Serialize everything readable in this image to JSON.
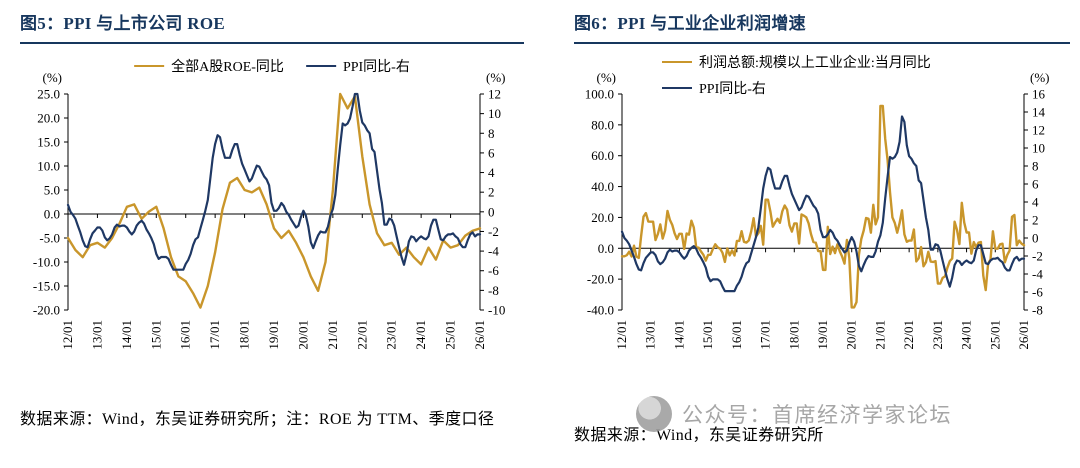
{
  "page": {
    "background": "#ffffff"
  },
  "colors": {
    "title_navy": "#17375E",
    "line_gold": "#C9962B",
    "line_navy": "#1F3864",
    "watermark_gray": "#A6A6A6"
  },
  "panels": [
    {
      "title": "图5：PPI 与上市公司 ROE",
      "source_note": "数据来源：Wind，东吴证券研究所；注：ROE 为 TTM、季度口径"
    },
    {
      "title": "图6：PPI 与工业企业利润增速",
      "source_note": "数据来源：Wind，东吴证券研究所",
      "watermark_text": "公众号：首席经济学家论坛"
    }
  ],
  "chart_data": [
    {
      "type": "line",
      "title": "图5：PPI 与上市公司 ROE",
      "legend_position": "top-center",
      "grid": false,
      "x_tick_labels": [
        "12/01",
        "13/01",
        "14/01",
        "15/01",
        "16/01",
        "17/01",
        "18/01",
        "19/01",
        "20/01",
        "21/01",
        "22/01",
        "23/01",
        "24/01",
        "25/01",
        "26/01"
      ],
      "left_axis": {
        "label": "(%)",
        "min": -20,
        "max": 25,
        "decimals": 1,
        "ticks": [
          25,
          20,
          15,
          10,
          5,
          0,
          -5,
          -10,
          -15,
          -20
        ]
      },
      "right_axis": {
        "label": "(%)",
        "min": -10,
        "max": 12,
        "decimals": 0,
        "ticks": [
          12,
          10,
          8,
          6,
          4,
          2,
          0,
          -2,
          -4,
          -6,
          -8,
          -10
        ]
      },
      "series": [
        {
          "name": "全部A股ROE-同比",
          "color": "#C9962B",
          "axis": "left",
          "frequency": "quarterly",
          "values": [
            -5,
            -7.5,
            -9,
            -6.5,
            -6,
            -7,
            -5,
            -2,
            1.5,
            2,
            -1,
            0.5,
            1.5,
            -3,
            -9,
            -13,
            -14,
            -16.5,
            -19.5,
            -15,
            -8,
            1,
            6.5,
            7.5,
            5,
            4.5,
            5.5,
            2,
            -3,
            -5,
            -3.5,
            -6,
            -9,
            -13,
            -16,
            -10,
            5,
            25,
            22,
            24.5,
            12,
            2,
            -4,
            -6.5,
            -6,
            -8.5,
            -7,
            -9,
            -10.5,
            -7,
            -9.5,
            -5.5,
            -7,
            -6.5,
            -4.5,
            -3.5,
            -3
          ]
        },
        {
          "name": "PPI同比-右",
          "color": "#1F3864",
          "axis": "right",
          "frequency": "monthly",
          "values": [
            0.7,
            0.0,
            -0.3,
            -0.7,
            -1.4,
            -2.1,
            -2.9,
            -3.5,
            -3.6,
            -2.8,
            -2.2,
            -1.9,
            -1.6,
            -1.6,
            -1.9,
            -2.6,
            -2.9,
            -2.7,
            -2.3,
            -1.6,
            -1.3,
            -1.5,
            -1.4,
            -1.4,
            -1.6,
            -2.0,
            -2.3,
            -2.0,
            -1.4,
            -1.1,
            -0.9,
            -1.2,
            -1.8,
            -2.2,
            -2.7,
            -3.3,
            -4.3,
            -4.8,
            -4.6,
            -4.6,
            -4.6,
            -4.8,
            -5.4,
            -5.9,
            -5.9,
            -5.9,
            -5.9,
            -5.9,
            -5.3,
            -4.9,
            -4.3,
            -3.4,
            -2.8,
            -2.6,
            -1.7,
            -0.8,
            0.1,
            1.2,
            3.3,
            5.5,
            6.9,
            7.8,
            7.6,
            6.4,
            5.5,
            5.5,
            5.5,
            6.3,
            6.9,
            6.9,
            5.8,
            4.9,
            4.3,
            3.7,
            3.1,
            3.4,
            4.1,
            4.7,
            4.6,
            4.1,
            3.6,
            3.3,
            2.7,
            0.9,
            0.1,
            0.1,
            0.4,
            0.9,
            0.6,
            0.0,
            -0.3,
            -0.8,
            -1.2,
            -1.6,
            -1.4,
            -0.5,
            0.1,
            -0.4,
            -1.5,
            -3.1,
            -3.7,
            -3.0,
            -2.4,
            -2.0,
            -2.1,
            -2.1,
            -1.5,
            -0.4,
            0.3,
            1.7,
            4.4,
            6.8,
            9.0,
            8.8,
            9.0,
            9.5,
            10.7,
            13.5,
            12.9,
            10.3,
            9.1,
            8.8,
            8.3,
            8.0,
            6.4,
            6.1,
            4.2,
            2.3,
            0.9,
            -1.3,
            -1.3,
            -0.7,
            -0.8,
            -1.4,
            -2.5,
            -3.6,
            -4.6,
            -5.4,
            -4.4,
            -3.0,
            -2.5,
            -2.6,
            -3.0,
            -2.7,
            -2.5,
            -2.7,
            -2.8,
            -2.5,
            -1.4,
            -0.8,
            -0.8,
            -1.8,
            -2.8,
            -2.9,
            -2.5,
            -2.3,
            -2.3,
            -2.2,
            -2.5,
            -2.7,
            -3.3,
            -3.6,
            -3.6,
            -2.9,
            -2.3,
            -2.1,
            -2.5,
            -2.3,
            -2.3
          ]
        }
      ]
    },
    {
      "type": "line",
      "title": "图6：PPI 与工业企业利润增速",
      "legend_position": "top-left",
      "grid": false,
      "x_tick_labels": [
        "12/01",
        "13/01",
        "14/01",
        "15/01",
        "16/01",
        "17/01",
        "18/01",
        "19/01",
        "20/01",
        "21/01",
        "22/01",
        "23/01",
        "24/01",
        "25/01",
        "26/01"
      ],
      "left_axis": {
        "label": "(%)",
        "min": -40,
        "max": 100,
        "decimals": 1,
        "ticks": [
          100,
          80,
          60,
          40,
          20,
          0,
          -20,
          -40
        ]
      },
      "right_axis": {
        "label": "(%)",
        "min": -8,
        "max": 16,
        "decimals": 0,
        "ticks": [
          16,
          14,
          12,
          10,
          8,
          6,
          4,
          2,
          0,
          -2,
          -4,
          -6,
          -8
        ]
      },
      "series": [
        {
          "name": "利润总额:规模以上工业企业:当月同比",
          "color": "#C9962B",
          "axis": "left",
          "frequency": "monthly",
          "values": [
            -5.2,
            -5.2,
            -4.5,
            -2.2,
            -5.3,
            1.7,
            -5.4,
            -6.2,
            7.8,
            20.5,
            22.8,
            17.3,
            17.2,
            17.2,
            5.3,
            9.3,
            15.5,
            6.3,
            11.6,
            24.2,
            18.4,
            15.1,
            9.7,
            6.0,
            9.4,
            9.4,
            -0.4,
            9.6,
            8.9,
            17.9,
            13.5,
            0.6,
            0.4,
            -2.1,
            -4.2,
            -8.0,
            -4.2,
            -4.2,
            -0.4,
            2.6,
            0.6,
            -0.3,
            -2.9,
            -8.8,
            -0.1,
            -4.6,
            -1.4,
            -4.7,
            4.8,
            4.8,
            11.1,
            4.2,
            3.7,
            5.1,
            11.0,
            19.5,
            7.7,
            9.8,
            14.5,
            2.3,
            31.5,
            31.5,
            23.8,
            14.0,
            16.7,
            19.1,
            16.5,
            24.0,
            27.7,
            25.1,
            14.9,
            10.8,
            16.1,
            16.1,
            3.1,
            21.9,
            21.1,
            20.0,
            16.2,
            9.2,
            4.1,
            3.6,
            -1.8,
            -1.9,
            -14.0,
            -14.0,
            13.9,
            -3.7,
            1.1,
            -3.1,
            2.6,
            -2.0,
            -5.3,
            -9.9,
            5.4,
            -6.3,
            -38.3,
            -38.3,
            -34.9,
            -4.3,
            6.0,
            11.5,
            19.6,
            19.1,
            10.1,
            28.2,
            15.5,
            20.1,
            92.3,
            92.3,
            71.0,
            57.0,
            36.4,
            20.0,
            16.4,
            10.1,
            16.3,
            24.6,
            9.0,
            4.2,
            5.0,
            5.0,
            12.2,
            -8.5,
            -6.5,
            0.8,
            -11.7,
            -9.1,
            -2.3,
            -8.6,
            -8.9,
            -8.3,
            -22.9,
            -22.9,
            -19.2,
            -18.2,
            -12.6,
            -8.3,
            -6.7,
            17.2,
            11.9,
            2.7,
            29.5,
            16.8,
            10.2,
            10.2,
            -3.5,
            4.0,
            0.7,
            3.6,
            4.1,
            -17.8,
            -27.1,
            -10.0,
            -7.3,
            11.0,
            -0.3,
            -0.3,
            2.6,
            3.0,
            -9.1,
            -4.3,
            -1.5,
            20.4,
            21.6,
            2.0,
            5.0,
            3.0,
            2.0
          ]
        },
        {
          "name": "PPI同比-右",
          "color": "#1F3864",
          "axis": "right",
          "frequency": "monthly",
          "values": [
            0.7,
            0.0,
            -0.3,
            -0.7,
            -1.4,
            -2.1,
            -2.9,
            -3.5,
            -3.6,
            -2.8,
            -2.2,
            -1.9,
            -1.6,
            -1.6,
            -1.9,
            -2.6,
            -2.9,
            -2.7,
            -2.3,
            -1.6,
            -1.3,
            -1.5,
            -1.4,
            -1.4,
            -1.6,
            -2.0,
            -2.3,
            -2.0,
            -1.4,
            -1.1,
            -0.9,
            -1.2,
            -1.8,
            -2.2,
            -2.7,
            -3.3,
            -4.3,
            -4.8,
            -4.6,
            -4.6,
            -4.6,
            -4.8,
            -5.4,
            -5.9,
            -5.9,
            -5.9,
            -5.9,
            -5.9,
            -5.3,
            -4.9,
            -4.3,
            -3.4,
            -2.8,
            -2.6,
            -1.7,
            -0.8,
            0.1,
            1.2,
            3.3,
            5.5,
            6.9,
            7.8,
            7.6,
            6.4,
            5.5,
            5.5,
            5.5,
            6.3,
            6.9,
            6.9,
            5.8,
            4.9,
            4.3,
            3.7,
            3.1,
            3.4,
            4.1,
            4.7,
            4.6,
            4.1,
            3.6,
            3.3,
            2.7,
            0.9,
            0.1,
            0.1,
            0.4,
            0.9,
            0.6,
            0.0,
            -0.3,
            -0.8,
            -1.2,
            -1.6,
            -1.4,
            -0.5,
            0.1,
            -0.4,
            -1.5,
            -3.1,
            -3.7,
            -3.0,
            -2.4,
            -2.0,
            -2.1,
            -2.1,
            -1.5,
            -0.4,
            0.3,
            1.7,
            4.4,
            6.8,
            9.0,
            8.8,
            9.0,
            9.5,
            10.7,
            13.5,
            12.9,
            10.3,
            9.1,
            8.8,
            8.3,
            8.0,
            6.4,
            6.1,
            4.2,
            2.3,
            0.9,
            -1.3,
            -1.3,
            -0.7,
            -0.8,
            -1.4,
            -2.5,
            -3.6,
            -4.6,
            -5.4,
            -4.4,
            -3.0,
            -2.5,
            -2.6,
            -3.0,
            -2.7,
            -2.5,
            -2.7,
            -2.8,
            -2.5,
            -1.4,
            -0.8,
            -0.8,
            -1.8,
            -2.8,
            -2.9,
            -2.5,
            -2.3,
            -2.3,
            -2.2,
            -2.5,
            -2.7,
            -3.3,
            -3.6,
            -3.6,
            -2.9,
            -2.3,
            -2.1,
            -2.5,
            -2.3,
            -2.3
          ]
        }
      ]
    }
  ]
}
